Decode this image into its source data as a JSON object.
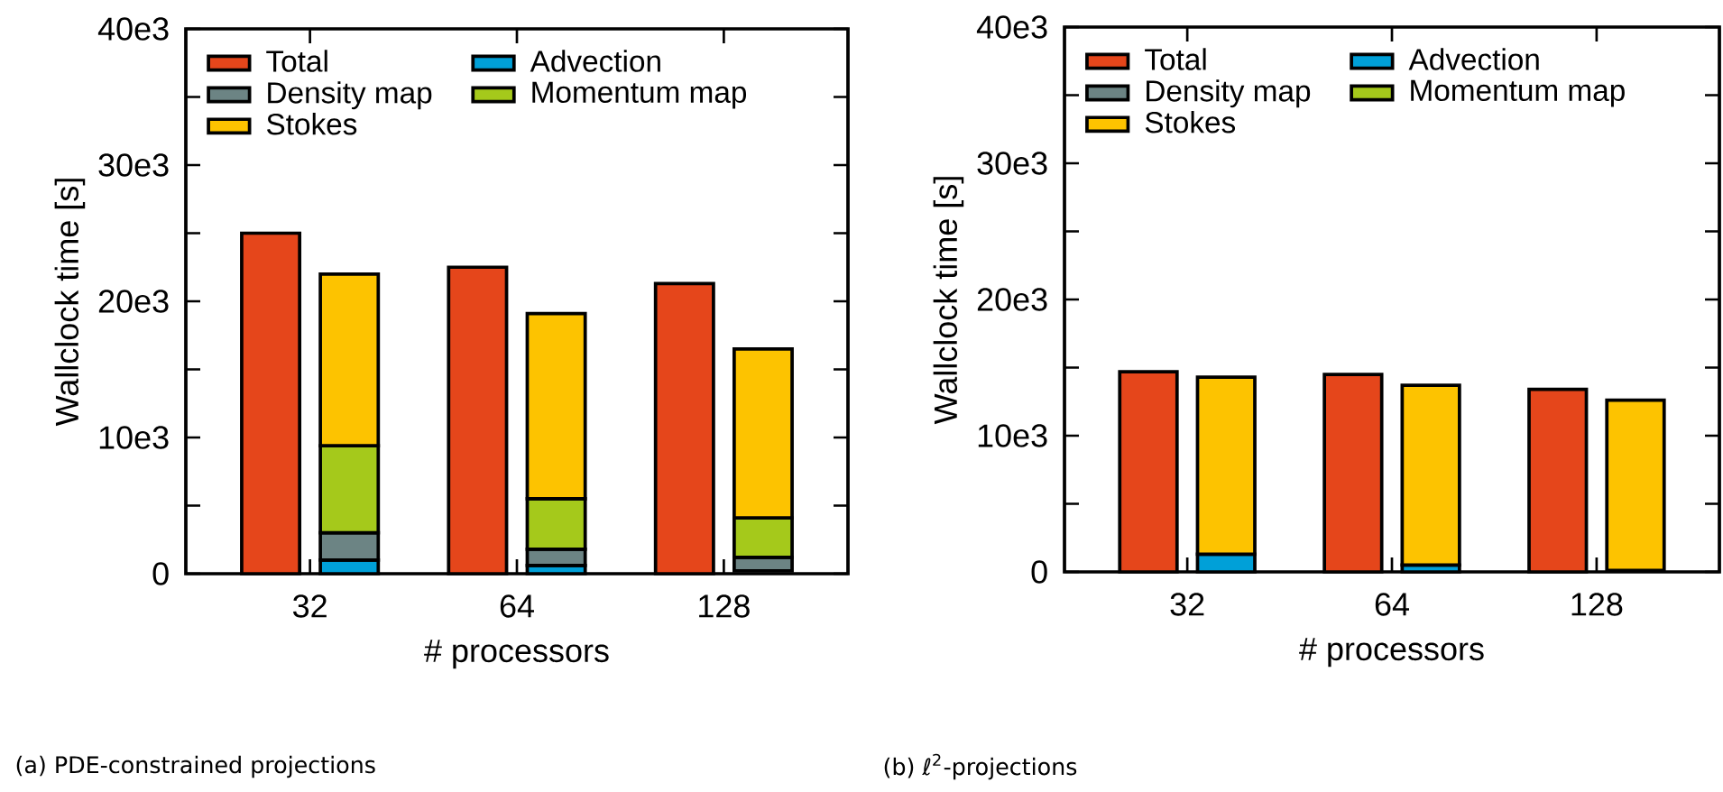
{
  "chart_data": [
    {
      "type": "bar",
      "categories": [
        "32",
        "64",
        "128"
      ],
      "xlabel": "# processors",
      "ylabel": "Wallclock time [s]",
      "ylim": [
        0,
        40000
      ],
      "yticks": [
        0,
        {
          "value": 5000,
          "label": null
        },
        {
          "value": 10000,
          "label": "10e3"
        },
        {
          "value": 15000,
          "label": null
        },
        {
          "value": 20000,
          "label": "20e3"
        },
        {
          "value": 25000,
          "label": null
        },
        {
          "value": 30000,
          "label": "30e3"
        },
        {
          "value": 35000,
          "label": null
        },
        {
          "value": 40000,
          "label": "40e3"
        }
      ],
      "legend": "top left",
      "annotations": [
        "(a) PDE-constrained projections"
      ],
      "series": [
        {
          "name": "Total",
          "color": "#e5461b",
          "base": [
            0,
            0,
            0
          ],
          "values": [
            25000,
            22500,
            21300
          ]
        },
        {
          "name": "Advection",
          "color": "#00a0d8",
          "base": [
            0,
            0,
            null
          ],
          "values": [
            1000,
            600,
            null
          ]
        },
        {
          "name": "Density map",
          "color": "#6c8484",
          "base": [
            1000,
            600,
            200
          ],
          "values": [
            2000,
            1200,
            1000
          ]
        },
        {
          "name": "Momentum map",
          "color": "#a5c91b",
          "base": [
            3000,
            1800,
            1200
          ],
          "values": [
            6400,
            3700,
            2900
          ]
        },
        {
          "name": "Stokes",
          "color": "#fdc300",
          "base": [
            9400,
            5500,
            4100
          ],
          "values": [
            12600,
            13600,
            12400
          ]
        }
      ]
    },
    {
      "type": "bar",
      "categories": [
        "32",
        "64",
        "128"
      ],
      "xlabel": "# processors",
      "ylabel": "Wallclock time [s]",
      "ylim": [
        0,
        40000
      ],
      "yticks": [
        0,
        {
          "value": 5000,
          "label": null
        },
        {
          "value": 10000,
          "label": "10e3"
        },
        {
          "value": 15000,
          "label": null
        },
        {
          "value": 20000,
          "label": "20e3"
        },
        {
          "value": 25000,
          "label": null
        },
        {
          "value": 30000,
          "label": "30e3"
        },
        {
          "value": 35000,
          "label": null
        },
        {
          "value": 40000,
          "label": "40e3"
        }
      ],
      "legend": "top left",
      "annotations": [
        "(b) ℓ$^{2}$-projections"
      ],
      "series": [
        {
          "name": "Total",
          "color": "#e5461b",
          "base": [
            0,
            0,
            0
          ],
          "values": [
            14700,
            14500,
            13400
          ]
        },
        {
          "name": "Advection",
          "color": "#00a0d8",
          "base": [
            0,
            0,
            null
          ],
          "values": [
            1300,
            500,
            null
          ]
        },
        {
          "name": "Density map",
          "color": "#6c8484",
          "values": [
            null,
            null,
            null
          ]
        },
        {
          "name": "Momentum map",
          "color": "#a5c91b",
          "values": [
            null,
            null,
            null
          ]
        },
        {
          "name": "Stokes",
          "color": "#fdc300",
          "base": [
            1300,
            500,
            100
          ],
          "values": [
            13000,
            13200,
            12500
          ]
        }
      ]
    }
  ]
}
